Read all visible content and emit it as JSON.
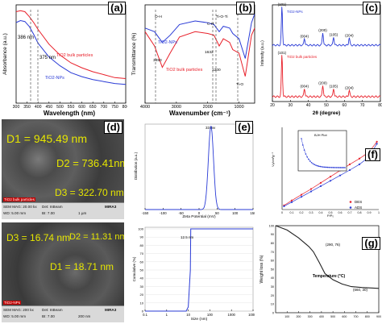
{
  "panels": {
    "a": {
      "letter": "(a)"
    },
    "b": {
      "letter": "(b)"
    },
    "c": {
      "letter": "(c)"
    },
    "d": {
      "letter": "(d)"
    },
    "e": {
      "letter": "(e)"
    },
    "f": {
      "letter": "(f)"
    },
    "g": {
      "letter": "(g)"
    }
  },
  "sem_bulk": {
    "d1": "D1 = 945.49 nm",
    "d2": "D2 = 736.41nm",
    "d3": "D3 = 322.70 nm",
    "badge": "TiO2 bulk particles",
    "sem_mag": "SEM MAG: 20.00 kx",
    "wd": "WD: 5.00 mm",
    "det": "Det: InBeam",
    "bi": "BI: 7.00",
    "scale": "1 µm",
    "brand": "MIRA3"
  },
  "sem_nps": {
    "d1": "D1 = 18.71 nm",
    "d2": "D2 = 11.31 nm",
    "d3": "D3 = 16.74 nm",
    "badge": "TiO2-NPs",
    "sem_mag": "SEM MAG: 200 kx",
    "wd": "WD: 5.00 mm",
    "det": "Det: InBeam",
    "bi": "BI: 7.00",
    "scale": "200 nm",
    "brand": "MIRA3"
  },
  "chart_data": [
    {
      "id": "a",
      "type": "line",
      "xlabel": "Wavelength (nm)",
      "ylabel": "Absorbance (a.u.)",
      "xlim": [
        300,
        800
      ],
      "xticks": [
        300,
        350,
        400,
        450,
        500,
        550,
        600,
        650,
        700,
        750,
        800
      ],
      "annotations": [
        "386 nm",
        "375 nm"
      ],
      "series": [
        {
          "name": "TiO2 bulk particles",
          "color": "#e8202a",
          "x": [
            300,
            320,
            340,
            360,
            380,
            400,
            450,
            500,
            550,
            600,
            650,
            700,
            750,
            800
          ],
          "y": [
            0.93,
            0.94,
            0.93,
            0.88,
            0.82,
            0.75,
            0.6,
            0.49,
            0.41,
            0.36,
            0.32,
            0.29,
            0.26,
            0.25
          ]
        },
        {
          "name": "TiO2-NPs",
          "color": "#2a3bd6",
          "x": [
            300,
            320,
            340,
            360,
            380,
            400,
            450,
            500,
            550,
            600,
            650,
            700,
            750,
            800
          ],
          "y": [
            0.82,
            0.84,
            0.83,
            0.78,
            0.7,
            0.61,
            0.47,
            0.38,
            0.31,
            0.27,
            0.24,
            0.22,
            0.2,
            0.19
          ]
        }
      ]
    },
    {
      "id": "b",
      "type": "line",
      "xlabel": "Wavenumber (cm⁻¹)",
      "ylabel": "Transmittance (%)",
      "xlim": [
        4000,
        500
      ],
      "xticks": [
        4000,
        3000,
        2000,
        1000
      ],
      "annotations": [
        "O-H",
        "Ti-O-Ti",
        "Ti-O",
        "C-H",
        "3450",
        "1632",
        "1200"
      ],
      "series": [
        {
          "name": "TiO2-NPs",
          "color": "#2a3bd6",
          "x": [
            4000,
            3700,
            3450,
            3200,
            2900,
            2400,
            2000,
            1800,
            1632,
            1500,
            1300,
            1200,
            1000,
            800,
            600,
            500
          ],
          "y": [
            0.72,
            0.7,
            0.64,
            0.68,
            0.74,
            0.76,
            0.75,
            0.74,
            0.7,
            0.73,
            0.72,
            0.69,
            0.66,
            0.55,
            0.75,
            0.8
          ]
        },
        {
          "name": "TiO2 bulk particles",
          "color": "#e8202a",
          "x": [
            4000,
            3700,
            3450,
            3200,
            2900,
            2400,
            2000,
            1800,
            1632,
            1500,
            1300,
            1200,
            1000,
            800,
            600,
            500
          ],
          "y": [
            0.7,
            0.62,
            0.5,
            0.58,
            0.67,
            0.7,
            0.69,
            0.68,
            0.62,
            0.66,
            0.64,
            0.6,
            0.58,
            0.45,
            0.68,
            0.72
          ]
        }
      ]
    },
    {
      "id": "c",
      "type": "line",
      "xlabel": "2θ (degree)",
      "ylabel": "Intensity (a.u.)",
      "xlim": [
        20,
        80
      ],
      "xticks": [
        20,
        30,
        40,
        50,
        60,
        70,
        80
      ],
      "series": [
        {
          "name": "TiO2-NPs",
          "color": "#2a3bd6",
          "peaks": [
            [
              25.3,
              1.0,
              "(101)"
            ],
            [
              37.8,
              0.18,
              "(004)"
            ],
            [
              48.0,
              0.33,
              "(200)"
            ],
            [
              54.0,
              0.22,
              "(105)"
            ],
            [
              62.7,
              0.2,
              "(204)"
            ]
          ]
        },
        {
          "name": "TiO2 bulk particles",
          "color": "#e8202a",
          "peaks": [
            [
              25.3,
              1.0,
              "(101)"
            ],
            [
              37.8,
              0.2,
              "(004)"
            ],
            [
              48.0,
              0.28,
              "(200)"
            ],
            [
              54.0,
              0.2,
              "(105)"
            ],
            [
              62.7,
              0.16,
              "(204)"
            ]
          ]
        }
      ]
    },
    {
      "id": "e",
      "type": "line",
      "xlabel": "Zeta Potential (mV)",
      "ylabel": "Distribution (a.u.)",
      "xlim": [
        -150,
        150
      ],
      "xticks": [
        -150,
        -100,
        -50,
        0,
        50,
        100,
        150
      ],
      "annotations": [
        "33 mv"
      ],
      "series": [
        {
          "name": "",
          "color": "#2a3bd6",
          "peak_x": 33,
          "width": 10
        }
      ]
    },
    {
      "id": "e2",
      "type": "line",
      "xlabel": "Size (nm)",
      "ylabel": "Cumulative (%)",
      "xlim": [
        0.1,
        10000
      ],
      "xscale": "log",
      "xticks": [
        0.1,
        1,
        10,
        100,
        1000,
        10000
      ],
      "yticks": [
        0,
        10,
        20,
        30,
        40,
        50,
        60,
        70,
        80,
        90,
        100
      ],
      "annotations": [
        "12.5 nm"
      ],
      "series": [
        {
          "name": "",
          "color": "#2a3bd6",
          "x": [
            0.1,
            8,
            10,
            12.5,
            13,
            20,
            10000
          ],
          "y": [
            0,
            0,
            5,
            50,
            100,
            100,
            100
          ]
        }
      ]
    },
    {
      "id": "f",
      "type": "line",
      "xlabel": "P/P₀",
      "ylabel": "Vₐ/cm³g⁻¹",
      "xlim": [
        0,
        1
      ],
      "ylim": [
        0,
        20
      ],
      "xticks": [
        0,
        0.1,
        0.2,
        0.3,
        0.4,
        0.5,
        0.6,
        0.7,
        0.8,
        0.9,
        1.0
      ],
      "series": [
        {
          "name": "DES",
          "color": "#e8202a",
          "x": [
            0.02,
            0.1,
            0.2,
            0.3,
            0.4,
            0.5,
            0.6,
            0.7,
            0.8,
            0.9,
            0.98
          ],
          "y": [
            1.0,
            2.2,
            3.6,
            5.0,
            6.5,
            8.0,
            9.5,
            11.0,
            12.4,
            14.0,
            16.5
          ]
        },
        {
          "name": "ADS",
          "color": "#2a3bd6",
          "x": [
            0.02,
            0.1,
            0.2,
            0.3,
            0.4,
            0.5,
            0.6,
            0.7,
            0.8,
            0.9,
            0.98
          ],
          "y": [
            0.8,
            1.8,
            3.1,
            4.4,
            5.7,
            7.0,
            8.3,
            9.6,
            11.0,
            12.8,
            16.0
          ]
        }
      ],
      "inset": {
        "title": "BJH Plot",
        "color": "#2a3bd6"
      }
    },
    {
      "id": "g",
      "type": "line",
      "xlabel": "Temperature (°C)",
      "ylabel": "Weight loss (%)",
      "xlim": [
        0,
        900
      ],
      "ylim": [
        0,
        100
      ],
      "xticks": [
        100,
        150,
        200,
        250,
        300,
        350,
        400,
        450,
        500,
        550,
        600,
        650,
        700,
        750,
        800,
        850,
        900
      ],
      "yticks": [
        0,
        10,
        20,
        30,
        40,
        50,
        60,
        70,
        80,
        90,
        100
      ],
      "annotations": [
        "(290, 76)",
        "(660, 30)"
      ],
      "series": [
        {
          "name": "",
          "color": "#222222",
          "x": [
            0,
            100,
            200,
            290,
            330,
            380,
            430,
            500,
            580,
            660,
            750,
            900
          ],
          "y": [
            100,
            95,
            86,
            76,
            70,
            58,
            45,
            38,
            33,
            30,
            29,
            28
          ]
        }
      ]
    }
  ]
}
